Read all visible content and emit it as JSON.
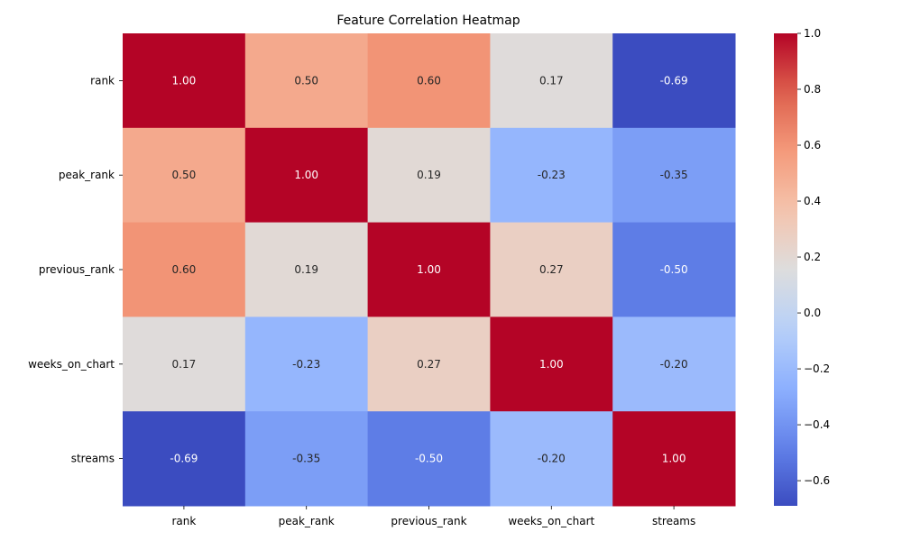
{
  "chart_data": {
    "type": "heatmap",
    "title": "Feature Correlation Heatmap",
    "x_categories": [
      "rank",
      "peak_rank",
      "previous_rank",
      "weeks_on_chart",
      "streams"
    ],
    "y_categories": [
      "rank",
      "peak_rank",
      "previous_rank",
      "weeks_on_chart",
      "streams"
    ],
    "values": [
      [
        1.0,
        0.5,
        0.6,
        0.17,
        -0.69
      ],
      [
        0.5,
        1.0,
        0.19,
        -0.23,
        -0.35
      ],
      [
        0.6,
        0.19,
        1.0,
        0.27,
        -0.5
      ],
      [
        0.17,
        -0.23,
        0.27,
        1.0,
        -0.2
      ],
      [
        -0.69,
        -0.35,
        -0.5,
        -0.2,
        1.0
      ]
    ],
    "value_labels": [
      [
        "1.00",
        "0.50",
        "0.60",
        "0.17",
        "-0.69"
      ],
      [
        "0.50",
        "1.00",
        "0.19",
        "-0.23",
        "-0.35"
      ],
      [
        "0.60",
        "0.19",
        "1.00",
        "0.27",
        "-0.50"
      ],
      [
        "0.17",
        "-0.23",
        "0.27",
        "1.00",
        "-0.20"
      ],
      [
        "-0.69",
        "-0.35",
        "-0.50",
        "-0.20",
        "1.00"
      ]
    ],
    "colormap": "coolwarm",
    "vmin": -0.69,
    "vmax": 1.0,
    "colorbar_ticks": [
      1.0,
      0.8,
      0.6,
      0.4,
      0.2,
      0.0,
      -0.2,
      -0.4,
      -0.6
    ],
    "colorbar_tick_labels": [
      "1.0",
      "0.8",
      "0.6",
      "0.4",
      "0.2",
      "0.0",
      "−0.2",
      "−0.4",
      "−0.6"
    ],
    "grid": false,
    "legend": "colorbar-right"
  }
}
